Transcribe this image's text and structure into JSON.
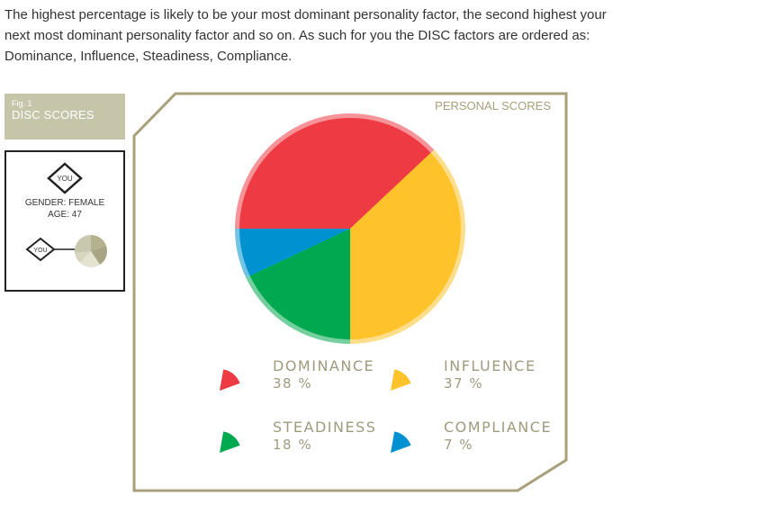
{
  "intro": {
    "line1": "The highest percentage is likely to be your most dominant personality factor, the second highest your",
    "line2": "next most dominant personality factor and so on. As such for you the DISC factors are ordered as:",
    "line3": "Dominance, Influence, Steadiness, Compliance."
  },
  "figure": {
    "number": "Fig. 1",
    "title": "DISC SCORES"
  },
  "profile": {
    "badge": "YOU",
    "gender": "GENDER: FEMALE",
    "age": "AGE: 47",
    "legend_badge": "YOU"
  },
  "panel": {
    "title": "PERSONAL SCORES"
  },
  "colors": {
    "accent": "#a8a07a",
    "tab_bg": "#c6c5aa",
    "dominance": "#ee3a43",
    "influence": "#fec32a",
    "steadiness": "#00a94f",
    "compliance": "#0092d0"
  },
  "chart_data": {
    "type": "pie",
    "title": "PERSONAL SCORES",
    "slices": [
      {
        "name": "DOMINANCE",
        "value": 38,
        "label": "38 %",
        "color": "#ee3a43"
      },
      {
        "name": "INFLUENCE",
        "value": 37,
        "label": "37 %",
        "color": "#fec32a"
      },
      {
        "name": "STEADINESS",
        "value": 18,
        "label": "18 %",
        "color": "#00a94f"
      },
      {
        "name": "COMPLIANCE",
        "value": 7,
        "label": "7 %",
        "color": "#0092d0"
      }
    ]
  }
}
